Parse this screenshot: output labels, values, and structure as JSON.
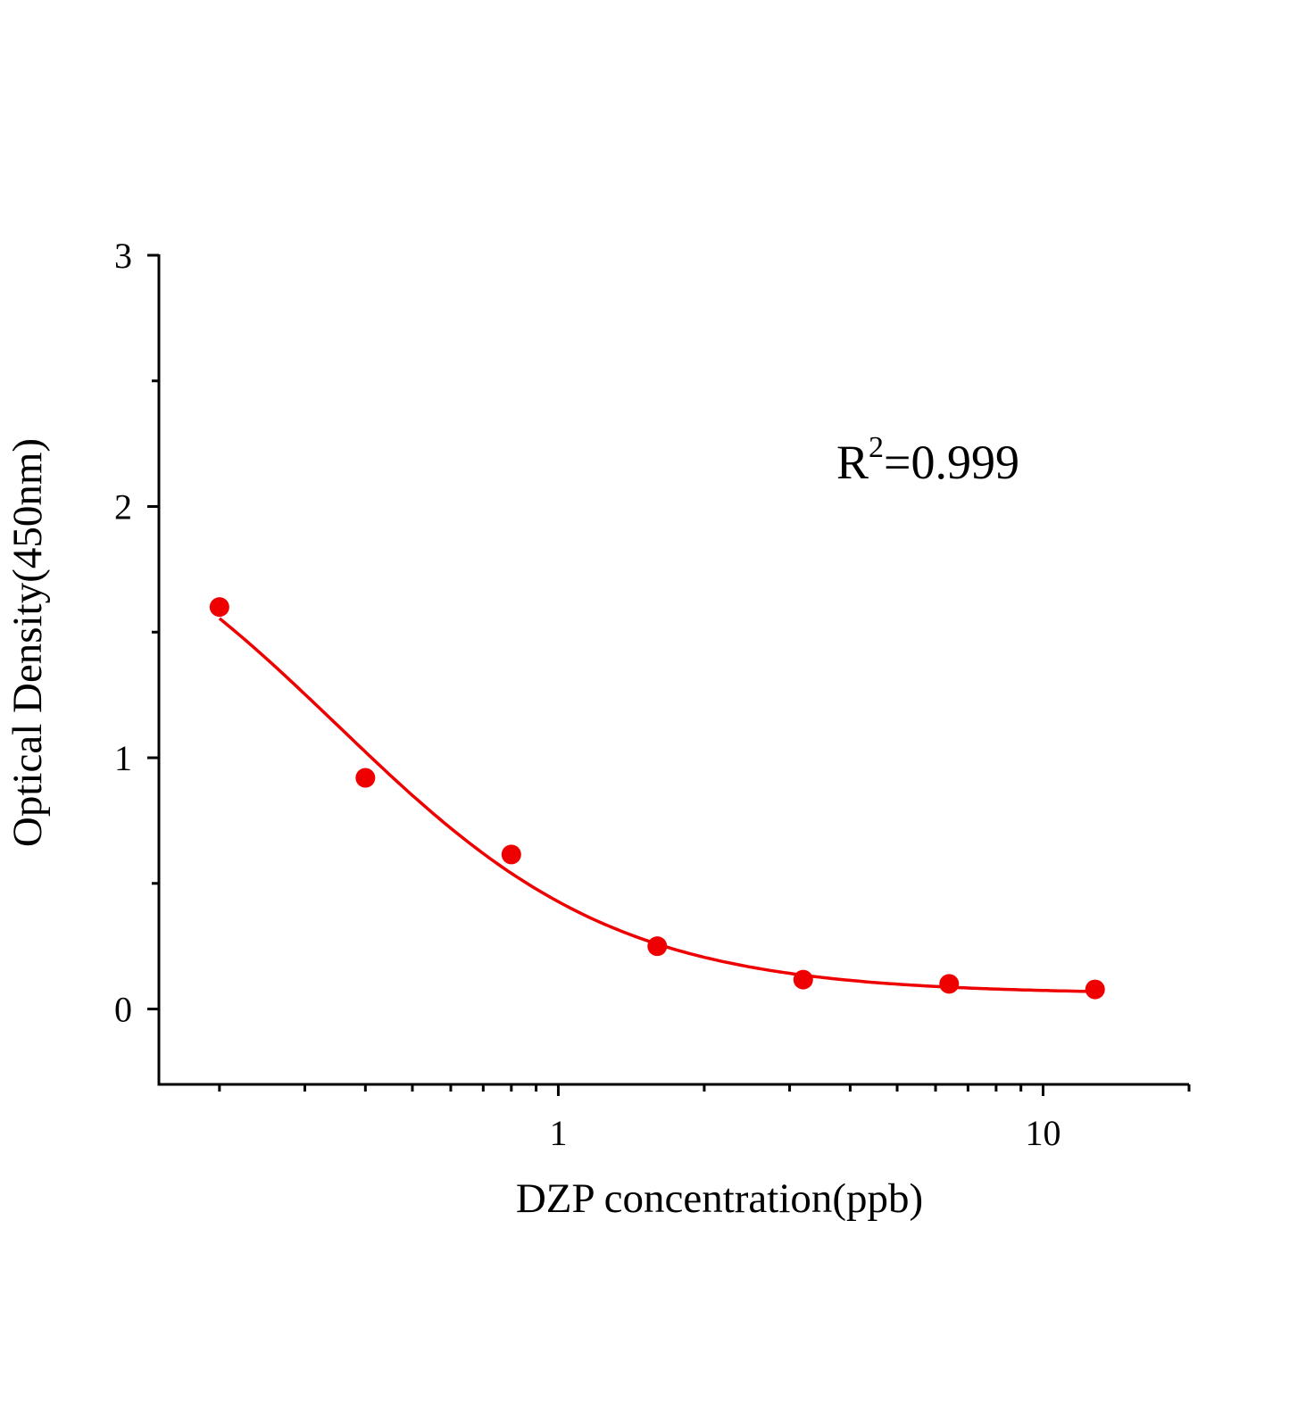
{
  "chart_data": {
    "type": "scatter",
    "title": "",
    "xlabel": "DZP concentration(ppb)",
    "ylabel": "Optical Density(450nm)",
    "x_scale": "log",
    "xlim": [
      0.15,
      20
    ],
    "ylim": [
      -0.3,
      3
    ],
    "x_ticks": [
      1,
      10
    ],
    "x_tick_labels": [
      "1",
      "10"
    ],
    "y_ticks": [
      0,
      1,
      2,
      3
    ],
    "y_tick_labels": [
      "0",
      "1",
      "2",
      "3"
    ],
    "grid": false,
    "series": [
      {
        "x": [
          0.2,
          0.4,
          0.8,
          1.6,
          3.2,
          6.4,
          12.8
        ],
        "y": [
          1.6,
          0.92,
          0.615,
          0.25,
          0.117,
          0.1,
          0.078
        ],
        "marker": "circle",
        "fit_curve": "4-parameter logistic",
        "color": "#ee0000"
      }
    ],
    "annotation": {
      "base": "R",
      "superscript": "2",
      "text": "=0.999"
    }
  }
}
